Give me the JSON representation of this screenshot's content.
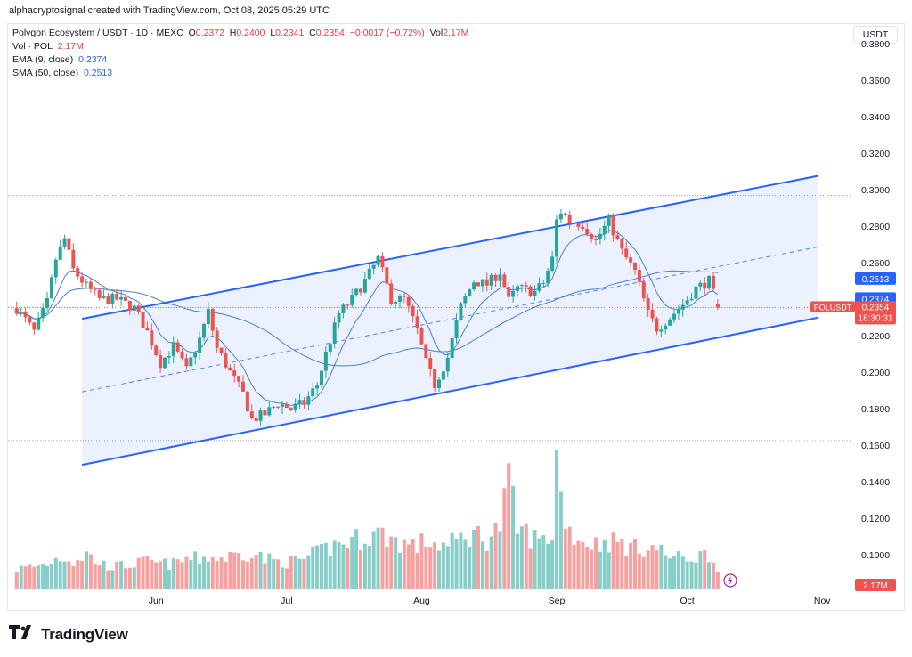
{
  "caption": "alphacryptosignal created with TradingView.com, Oct 08, 2025 05:29 UTC",
  "legend": {
    "symbol": "Polygon Ecosystem / USDT · 1D · MEXC",
    "o_label": "O",
    "o": "0.2372",
    "h_label": "H",
    "h": "0.2400",
    "l_label": "L",
    "l": "0.2341",
    "c_label": "C",
    "c": "0.2354",
    "change": "−0.0017 (−0.72%)",
    "vol_label": "Vol",
    "vol": "2.17M",
    "vol_pol_label": "Vol · POL",
    "vol_pol": "2.17M",
    "ema_label": "EMA (9, close)",
    "ema": "0.2374",
    "sma_label": "SMA (50, close)",
    "sma": "0.2513"
  },
  "currency": "USDT",
  "brand": "TradingView",
  "colors": {
    "up": "#26a69a",
    "down": "#ef5350",
    "channel": "#2962ff",
    "ma": "#4a7fd4",
    "bg": "#ffffff"
  },
  "chart_data": {
    "type": "candlestick",
    "yaxis": {
      "ticks": [
        "0.3800",
        "0.3600",
        "0.3400",
        "0.3200",
        "0.3000",
        "0.2800",
        "0.2600",
        "0.2400",
        "0.2200",
        "0.2000",
        "0.1800",
        "0.1600",
        "0.1400",
        "0.1200",
        "0.1000"
      ],
      "range": [
        0.1,
        0.38
      ],
      "scale": "linear"
    },
    "xaxis": {
      "ticks": [
        "Jun",
        "Jul",
        "Aug",
        "Sep",
        "Oct",
        "Nov"
      ]
    },
    "price_labels": [
      {
        "text": "0.2513",
        "value": 0.2513,
        "kind": "sma"
      },
      {
        "text": "0.2374",
        "value": 0.2374,
        "kind": "ema"
      },
      {
        "symbol": "POLUSDT",
        "text": "0.2354",
        "countdown": "18:30:31",
        "value": 0.2354,
        "kind": "last"
      }
    ],
    "volume_label": "2.17M",
    "horizontal_levels": [
      0.2968,
      0.1625
    ],
    "channel": {
      "upper": [
        {
          "x": "2025-05-15",
          "y": 0.2292
        },
        {
          "x": "2025-10-31",
          "y": 0.3075
        }
      ],
      "lower": [
        {
          "x": "2025-05-15",
          "y": 0.1492
        },
        {
          "x": "2025-10-31",
          "y": 0.2298
        }
      ],
      "mid": [
        {
          "x": "2025-05-15",
          "y": 0.1892
        },
        {
          "x": "2025-10-31",
          "y": 0.2686
        }
      ]
    },
    "anchors": [
      [
        "2025-04-30",
        0.235,
        0.8
      ],
      [
        "2025-05-04",
        0.222,
        0.9
      ],
      [
        "2025-05-07",
        0.238,
        1.0
      ],
      [
        "2025-05-09",
        0.262,
        1.2
      ],
      [
        "2025-05-11",
        0.273,
        1.3
      ],
      [
        "2025-05-13",
        0.256,
        1.1
      ],
      [
        "2025-05-16",
        0.247,
        1.4
      ],
      [
        "2025-05-19",
        0.24,
        1.0
      ],
      [
        "2025-05-23",
        0.24,
        0.9
      ],
      [
        "2025-05-27",
        0.235,
        1.0
      ],
      [
        "2025-05-30",
        0.222,
        1.1
      ],
      [
        "2025-06-02",
        0.205,
        1.0
      ],
      [
        "2025-06-05",
        0.214,
        1.0
      ],
      [
        "2025-06-08",
        0.201,
        1.2
      ],
      [
        "2025-06-11",
        0.218,
        1.2
      ],
      [
        "2025-06-13",
        0.233,
        1.3
      ],
      [
        "2025-06-15",
        0.213,
        1.2
      ],
      [
        "2025-06-18",
        0.2,
        1.3
      ],
      [
        "2025-06-21",
        0.188,
        1.4
      ],
      [
        "2025-06-23",
        0.174,
        1.5
      ],
      [
        "2025-06-26",
        0.177,
        1.2
      ],
      [
        "2025-06-29",
        0.183,
        1.1
      ],
      [
        "2025-07-02",
        0.18,
        1.1
      ],
      [
        "2025-07-05",
        0.183,
        1.2
      ],
      [
        "2025-07-08",
        0.193,
        1.4
      ],
      [
        "2025-07-10",
        0.21,
        1.6
      ],
      [
        "2025-07-13",
        0.232,
        1.8
      ],
      [
        "2025-07-16",
        0.24,
        1.9
      ],
      [
        "2025-07-19",
        0.25,
        2.1
      ],
      [
        "2025-07-22",
        0.262,
        2.2
      ],
      [
        "2025-07-25",
        0.24,
        2.0
      ],
      [
        "2025-07-28",
        0.24,
        1.8
      ],
      [
        "2025-07-31",
        0.223,
        1.7
      ],
      [
        "2025-08-02",
        0.205,
        1.9
      ],
      [
        "2025-08-04",
        0.193,
        1.8
      ],
      [
        "2025-08-07",
        0.208,
        1.7
      ],
      [
        "2025-08-10",
        0.236,
        2.0
      ],
      [
        "2025-08-13",
        0.25,
        2.2
      ],
      [
        "2025-08-16",
        0.248,
        2.0
      ],
      [
        "2025-08-19",
        0.255,
        2.5
      ],
      [
        "2025-08-21",
        0.239,
        4.2
      ],
      [
        "2025-08-23",
        0.246,
        2.4
      ],
      [
        "2025-08-27",
        0.244,
        2.0
      ],
      [
        "2025-08-29",
        0.249,
        1.9
      ],
      [
        "2025-08-31",
        0.262,
        2.2
      ],
      [
        "2025-09-01",
        0.283,
        5.3
      ],
      [
        "2025-09-02",
        0.288,
        3.6
      ],
      [
        "2025-09-04",
        0.283,
        2.3
      ],
      [
        "2025-09-07",
        0.281,
        1.9
      ],
      [
        "2025-09-10",
        0.272,
        1.8
      ],
      [
        "2025-09-13",
        0.283,
        1.9
      ],
      [
        "2025-09-16",
        0.266,
        1.8
      ],
      [
        "2025-09-19",
        0.255,
        1.6
      ],
      [
        "2025-09-22",
        0.232,
        1.7
      ],
      [
        "2025-09-24",
        0.224,
        1.6
      ],
      [
        "2025-09-27",
        0.23,
        1.3
      ],
      [
        "2025-09-30",
        0.237,
        1.2
      ],
      [
        "2025-10-03",
        0.246,
        1.3
      ],
      [
        "2025-10-06",
        0.25,
        1.4
      ],
      [
        "2025-10-08",
        0.2354,
        0.7
      ]
    ]
  }
}
